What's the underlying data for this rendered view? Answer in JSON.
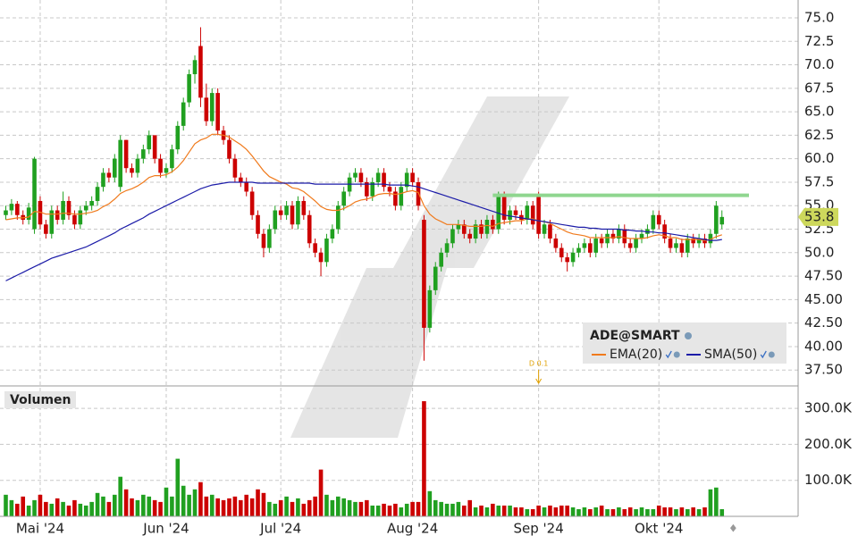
{
  "chart_data": {
    "type": "candlestick",
    "title": "ADE@SMART",
    "categories": [
      null,
      null,
      null,
      null,
      null,
      null,
      "Mai '24",
      null,
      null,
      null,
      null,
      null,
      null,
      null,
      null,
      null,
      null,
      null,
      null,
      null,
      null,
      null,
      null,
      null,
      null,
      null,
      null,
      null,
      "Jun '24",
      null,
      null,
      null,
      null,
      null,
      null,
      null,
      null,
      null,
      null,
      null,
      null,
      null,
      null,
      null,
      null,
      null,
      null,
      null,
      "Jul '24",
      null,
      null,
      null,
      null,
      null,
      null,
      null,
      null,
      null,
      null,
      null,
      null,
      null,
      null,
      null,
      null,
      null,
      null,
      null,
      null,
      null,
      null,
      "Aug '24",
      null,
      null,
      null,
      null,
      null,
      null,
      null,
      null,
      null,
      null,
      null,
      null,
      null,
      null,
      null,
      null,
      null,
      null,
      null,
      null,
      null,
      "Sep '24",
      null,
      null,
      null,
      null,
      null,
      null,
      null,
      null,
      null,
      null,
      null,
      null,
      null,
      null,
      null,
      null,
      null,
      null,
      null,
      null,
      "Okt '24",
      null,
      null,
      null,
      null,
      null,
      null,
      null,
      null,
      null,
      null,
      null
    ],
    "ohlc": [
      [
        54.0,
        55.0,
        53.5,
        54.5
      ],
      [
        54.5,
        55.7,
        54.0,
        55.2
      ],
      [
        55.2,
        55.5,
        53.5,
        54.0
      ],
      [
        54.0,
        54.5,
        53.0,
        53.5
      ],
      [
        53.5,
        55.3,
        53.0,
        54.8
      ],
      [
        52.5,
        60.2,
        52.0,
        60.0
      ],
      [
        55.5,
        56.0,
        52.5,
        53.0
      ],
      [
        53.0,
        53.5,
        51.5,
        52.0
      ],
      [
        52.0,
        55.0,
        51.5,
        54.5
      ],
      [
        54.5,
        55.0,
        53.0,
        53.5
      ],
      [
        53.5,
        56.5,
        53.0,
        55.5
      ],
      [
        55.5,
        56.0,
        53.5,
        54.0
      ],
      [
        54.0,
        54.5,
        52.5,
        53.0
      ],
      [
        53.0,
        55.0,
        52.5,
        54.5
      ],
      [
        54.5,
        55.5,
        54.0,
        55.0
      ],
      [
        55.0,
        56.0,
        54.5,
        55.5
      ],
      [
        55.5,
        57.5,
        55.0,
        57.0
      ],
      [
        57.0,
        59.0,
        56.5,
        58.5
      ],
      [
        58.5,
        59.0,
        57.5,
        58.0
      ],
      [
        58.0,
        60.5,
        57.5,
        60.0
      ],
      [
        57.0,
        62.5,
        56.5,
        62.0
      ],
      [
        62.0,
        62.0,
        58.5,
        59.0
      ],
      [
        59.0,
        59.5,
        58.0,
        58.5
      ],
      [
        58.5,
        60.5,
        58.0,
        60.0
      ],
      [
        60.0,
        61.5,
        59.5,
        61.0
      ],
      [
        61.0,
        63.0,
        60.5,
        62.5
      ],
      [
        62.5,
        62.5,
        59.5,
        60.0
      ],
      [
        60.0,
        60.5,
        58.0,
        58.5
      ],
      [
        58.5,
        59.5,
        58.0,
        59.0
      ],
      [
        59.0,
        61.5,
        58.5,
        61.0
      ],
      [
        61.0,
        64.0,
        60.5,
        63.5
      ],
      [
        63.5,
        66.5,
        63.0,
        66.0
      ],
      [
        66.0,
        69.5,
        65.5,
        69.0
      ],
      [
        69.0,
        71.0,
        68.0,
        70.5
      ],
      [
        72.0,
        74.0,
        65.5,
        66.5
      ],
      [
        66.5,
        68.0,
        63.5,
        64.0
      ],
      [
        64.0,
        67.5,
        63.5,
        67.0
      ],
      [
        67.0,
        67.5,
        62.5,
        63.0
      ],
      [
        63.0,
        63.5,
        61.5,
        62.0
      ],
      [
        62.0,
        62.5,
        59.5,
        60.0
      ],
      [
        60.0,
        60.5,
        57.5,
        58.0
      ],
      [
        58.0,
        58.5,
        57.0,
        57.5
      ],
      [
        57.5,
        58.0,
        56.0,
        56.5
      ],
      [
        56.5,
        57.0,
        53.5,
        54.0
      ],
      [
        54.0,
        54.5,
        51.5,
        52.0
      ],
      [
        52.0,
        52.5,
        49.5,
        50.5
      ],
      [
        50.5,
        53.0,
        50.0,
        52.5
      ],
      [
        52.5,
        55.0,
        52.0,
        54.5
      ],
      [
        54.5,
        55.0,
        53.5,
        54.0
      ],
      [
        54.0,
        55.5,
        53.5,
        55.0
      ],
      [
        55.0,
        55.5,
        52.5,
        53.0
      ],
      [
        53.0,
        56.0,
        52.5,
        55.5
      ],
      [
        55.5,
        56.0,
        53.5,
        54.0
      ],
      [
        54.0,
        54.5,
        50.5,
        51.0
      ],
      [
        51.0,
        51.5,
        49.5,
        50.0
      ],
      [
        50.0,
        50.5,
        47.5,
        49.0
      ],
      [
        49.0,
        52.0,
        48.5,
        51.5
      ],
      [
        51.5,
        53.0,
        51.0,
        52.5
      ],
      [
        52.5,
        55.5,
        52.0,
        55.0
      ],
      [
        55.0,
        57.0,
        54.5,
        56.5
      ],
      [
        56.5,
        58.5,
        56.0,
        58.0
      ],
      [
        58.0,
        59.0,
        57.5,
        58.5
      ],
      [
        58.5,
        59.0,
        57.0,
        57.5
      ],
      [
        57.5,
        58.0,
        55.5,
        56.0
      ],
      [
        56.0,
        58.0,
        55.5,
        57.5
      ],
      [
        57.5,
        59.0,
        57.0,
        58.5
      ],
      [
        58.5,
        59.0,
        56.5,
        57.0
      ],
      [
        57.0,
        57.5,
        56.0,
        56.5
      ],
      [
        56.5,
        57.0,
        54.5,
        55.0
      ],
      [
        55.0,
        57.5,
        54.5,
        57.0
      ],
      [
        57.0,
        59.0,
        56.5,
        58.5
      ],
      [
        58.5,
        59.0,
        57.0,
        57.5
      ],
      [
        57.5,
        58.0,
        54.5,
        55.0
      ],
      [
        53.5,
        54.0,
        38.5,
        42.0
      ],
      [
        42.0,
        46.5,
        41.5,
        46.0
      ],
      [
        46.0,
        49.0,
        45.5,
        48.5
      ],
      [
        48.5,
        50.5,
        48.0,
        50.0
      ],
      [
        50.0,
        51.5,
        49.5,
        51.0
      ],
      [
        51.0,
        53.0,
        50.5,
        52.5
      ],
      [
        52.5,
        53.5,
        52.0,
        53.0
      ],
      [
        53.0,
        53.5,
        51.5,
        52.0
      ],
      [
        52.0,
        52.5,
        51.0,
        51.5
      ],
      [
        51.5,
        53.5,
        51.0,
        53.0
      ],
      [
        53.0,
        53.5,
        51.5,
        52.0
      ],
      [
        52.0,
        54.0,
        51.5,
        53.5
      ],
      [
        53.5,
        54.0,
        52.0,
        52.5
      ],
      [
        52.5,
        56.5,
        52.0,
        56.0
      ],
      [
        56.0,
        56.5,
        53.0,
        53.5
      ],
      [
        53.5,
        55.0,
        53.0,
        54.5
      ],
      [
        54.5,
        55.0,
        53.5,
        54.0
      ],
      [
        54.0,
        54.5,
        53.0,
        53.5
      ],
      [
        53.5,
        55.5,
        53.0,
        55.0
      ],
      [
        55.0,
        55.5,
        52.5,
        53.0
      ],
      [
        56.0,
        56.5,
        51.5,
        52.0
      ],
      [
        52.0,
        53.5,
        51.5,
        53.0
      ],
      [
        53.0,
        53.5,
        51.0,
        51.5
      ],
      [
        51.5,
        52.0,
        50.0,
        50.5
      ],
      [
        50.5,
        51.0,
        49.0,
        49.5
      ],
      [
        49.5,
        50.0,
        48.0,
        49.0
      ],
      [
        49.0,
        50.5,
        48.5,
        50.0
      ],
      [
        50.0,
        51.0,
        49.5,
        50.5
      ],
      [
        50.5,
        51.5,
        50.0,
        51.0
      ],
      [
        51.0,
        51.5,
        49.5,
        50.0
      ],
      [
        50.0,
        52.0,
        49.5,
        51.5
      ],
      [
        51.5,
        52.0,
        50.5,
        51.0
      ],
      [
        51.0,
        52.5,
        50.5,
        52.0
      ],
      [
        52.0,
        52.5,
        51.0,
        51.5
      ],
      [
        51.5,
        53.0,
        51.0,
        52.5
      ],
      [
        52.5,
        53.0,
        50.5,
        51.0
      ],
      [
        51.0,
        51.5,
        50.0,
        50.5
      ],
      [
        50.5,
        52.0,
        50.0,
        51.5
      ],
      [
        51.5,
        52.5,
        51.0,
        52.0
      ],
      [
        52.0,
        53.0,
        51.5,
        52.5
      ],
      [
        52.5,
        54.5,
        52.0,
        54.0
      ],
      [
        54.0,
        54.5,
        52.5,
        53.0
      ],
      [
        53.0,
        53.5,
        51.0,
        51.5
      ],
      [
        51.5,
        52.0,
        50.0,
        50.5
      ],
      [
        50.5,
        51.5,
        50.0,
        51.0
      ],
      [
        51.0,
        51.5,
        49.5,
        50.0
      ],
      [
        50.0,
        52.0,
        49.5,
        51.5
      ],
      [
        51.5,
        52.0,
        50.5,
        51.0
      ],
      [
        51.0,
        52.0,
        50.5,
        51.5
      ],
      [
        51.5,
        52.0,
        50.5,
        51.0
      ],
      [
        51.0,
        52.5,
        50.5,
        52.0
      ],
      [
        52.0,
        55.5,
        51.5,
        55.0
      ],
      [
        53.0,
        54.5,
        52.5,
        53.8
      ]
    ],
    "up_color": "#20a020",
    "down_color": "#cc0000",
    "series": [
      {
        "name": "EMA(20)",
        "color": "#f07a1c",
        "values": [
          53.5,
          53.6,
          53.7,
          53.7,
          53.8,
          54.4,
          54.3,
          54.1,
          54.1,
          54.1,
          54.2,
          54.2,
          54.1,
          54.1,
          54.2,
          54.3,
          54.5,
          54.9,
          55.2,
          55.7,
          56.3,
          56.6,
          56.8,
          57.1,
          57.5,
          58.0,
          58.2,
          58.2,
          58.3,
          58.6,
          59.1,
          59.8,
          60.7,
          61.6,
          62.0,
          62.2,
          62.6,
          62.6,
          62.5,
          62.3,
          61.9,
          61.5,
          61.0,
          60.3,
          59.5,
          58.7,
          58.1,
          57.8,
          57.5,
          57.3,
          56.9,
          56.8,
          56.5,
          56.0,
          55.5,
          54.9,
          54.6,
          54.5,
          54.5,
          54.7,
          55.0,
          55.4,
          55.6,
          55.7,
          55.9,
          56.2,
          56.3,
          56.3,
          56.2,
          56.3,
          56.5,
          56.6,
          56.4,
          55.0,
          54.1,
          53.6,
          53.3,
          53.0,
          53.0,
          53.0,
          52.9,
          52.8,
          52.8,
          52.8,
          52.9,
          52.8,
          53.1,
          53.2,
          53.3,
          53.4,
          53.4,
          53.6,
          53.6,
          53.4,
          53.3,
          53.1,
          52.8,
          52.5,
          52.2,
          52.0,
          51.9,
          51.8,
          51.6,
          51.6,
          51.6,
          51.6,
          51.6,
          51.7,
          51.6,
          51.5,
          51.5,
          51.5,
          51.6,
          51.8,
          51.9,
          51.8,
          51.6,
          51.6,
          51.4,
          51.4,
          51.4,
          51.4,
          51.3,
          51.4,
          51.7,
          51.9
        ]
      },
      {
        "name": "SMA(50)",
        "color": "#1c1ca8",
        "values": [
          47.0,
          47.3,
          47.6,
          47.9,
          48.2,
          48.5,
          48.8,
          49.1,
          49.4,
          49.6,
          49.8,
          50.0,
          50.2,
          50.4,
          50.6,
          50.9,
          51.2,
          51.5,
          51.8,
          52.1,
          52.5,
          52.8,
          53.1,
          53.4,
          53.7,
          54.1,
          54.4,
          54.7,
          55.0,
          55.3,
          55.6,
          55.9,
          56.2,
          56.5,
          56.8,
          57.0,
          57.2,
          57.3,
          57.4,
          57.5,
          57.5,
          57.5,
          57.5,
          57.5,
          57.4,
          57.4,
          57.4,
          57.4,
          57.4,
          57.4,
          57.4,
          57.4,
          57.4,
          57.4,
          57.3,
          57.3,
          57.3,
          57.3,
          57.3,
          57.3,
          57.3,
          57.3,
          57.3,
          57.3,
          57.3,
          57.3,
          57.3,
          57.2,
          57.2,
          57.2,
          57.2,
          57.1,
          57.0,
          56.8,
          56.6,
          56.4,
          56.2,
          56.0,
          55.8,
          55.6,
          55.4,
          55.2,
          55.0,
          54.8,
          54.6,
          54.4,
          54.2,
          54.0,
          53.9,
          53.8,
          53.7,
          53.6,
          53.5,
          53.4,
          53.3,
          53.2,
          53.1,
          53.0,
          52.9,
          52.8,
          52.7,
          52.7,
          52.6,
          52.6,
          52.5,
          52.5,
          52.5,
          52.5,
          52.4,
          52.4,
          52.3,
          52.3,
          52.2,
          52.2,
          52.1,
          52.1,
          52.0,
          51.9,
          51.8,
          51.7,
          51.6,
          51.5,
          51.4,
          51.3,
          51.3,
          51.4
        ]
      }
    ],
    "ylim": [
      36,
      76.9
    ],
    "yticks": [
      {
        "value": 37.5,
        "label": "37.50"
      },
      {
        "value": 40,
        "label": "40.00"
      },
      {
        "value": 42.5,
        "label": "42.50"
      },
      {
        "value": 45,
        "label": "45.00"
      },
      {
        "value": 47.5,
        "label": "47.50"
      },
      {
        "value": 50,
        "label": "50.0"
      },
      {
        "value": 52.5,
        "label": "52.5"
      },
      {
        "value": 55,
        "label": "55.0"
      },
      {
        "value": 57.5,
        "label": "57.5"
      },
      {
        "value": 60,
        "label": "60.0"
      },
      {
        "value": 62.5,
        "label": "62.5"
      },
      {
        "value": 65,
        "label": "65.0"
      },
      {
        "value": 67.5,
        "label": "67.5"
      },
      {
        "value": 70,
        "label": "70.0"
      },
      {
        "value": 72.5,
        "label": "72.5"
      },
      {
        "value": 75,
        "label": "75.0"
      }
    ],
    "grid": true,
    "last_price": 53.8,
    "last_price_color": "#cdd85c",
    "resistance": 56.1,
    "resistance_color": "#8fd68f",
    "dividend": "D 0.1",
    "volume": {
      "label": "Volumen",
      "values": [
        60000,
        45000,
        35000,
        55000,
        30000,
        45000,
        60000,
        40000,
        35000,
        50000,
        40000,
        30000,
        45000,
        35000,
        30000,
        40000,
        65000,
        55000,
        40000,
        60000,
        110000,
        75000,
        50000,
        45000,
        60000,
        55000,
        45000,
        40000,
        80000,
        55000,
        160000,
        85000,
        60000,
        75000,
        95000,
        55000,
        60000,
        50000,
        45000,
        50000,
        55000,
        45000,
        60000,
        50000,
        75000,
        65000,
        40000,
        35000,
        45000,
        55000,
        40000,
        50000,
        35000,
        45000,
        55000,
        130000,
        60000,
        45000,
        55000,
        50000,
        45000,
        40000,
        40000,
        45000,
        30000,
        30000,
        35000,
        30000,
        35000,
        25000,
        35000,
        40000,
        40000,
        320000,
        70000,
        45000,
        40000,
        35000,
        35000,
        40000,
        30000,
        45000,
        25000,
        30000,
        25000,
        35000,
        30000,
        30000,
        30000,
        25000,
        25000,
        20000,
        20000,
        30000,
        25000,
        30000,
        25000,
        30000,
        30000,
        25000,
        20000,
        25000,
        20000,
        25000,
        30000,
        20000,
        20000,
        25000,
        20000,
        25000,
        20000,
        25000,
        20000,
        20000,
        30000,
        25000,
        25000,
        20000,
        25000,
        20000,
        25000,
        20000,
        25000,
        75000,
        80000,
        20000
      ],
      "ylim": [
        0,
        355000
      ],
      "yticks": [
        {
          "value": 100000,
          "label": "100.0K"
        },
        {
          "value": 200000,
          "label": "200.0K"
        },
        {
          "value": 300000,
          "label": "300.0K"
        }
      ]
    }
  }
}
